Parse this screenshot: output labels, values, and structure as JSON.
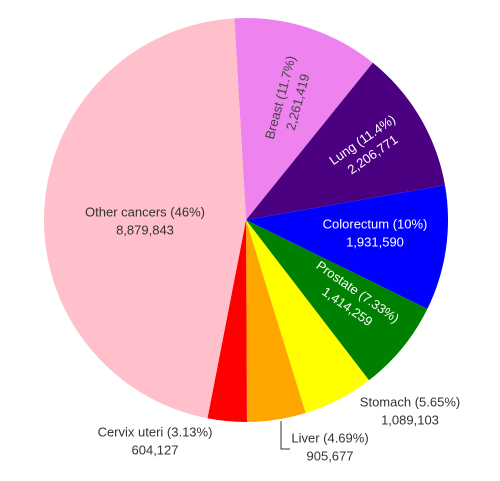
{
  "chart_data": {
    "type": "pie",
    "categories": [
      "Breast (11.7%)",
      "Lung (11.4%)",
      "Colorectum (10%)",
      "Prostate (7.33%)",
      "Stomach (5.65%)",
      "Liver (4.69%)",
      "Cervix uteri (3.13%)",
      "Other cancers (46%)"
    ],
    "values": [
      2261419,
      2206771,
      1931590,
      1414259,
      1089103,
      905677,
      604127,
      8879843
    ],
    "value_labels": [
      "2,261,419",
      "2,206,771",
      "1,931,590",
      "1,414,259",
      "1,089,103",
      "905,677",
      "604,127",
      "8,879,843"
    ],
    "colors": [
      "#ee82ee",
      "#4b0082",
      "#0000ff",
      "#008000",
      "#ffff00",
      "#ffa500",
      "#ff0000",
      "#ffc0cb"
    ]
  }
}
